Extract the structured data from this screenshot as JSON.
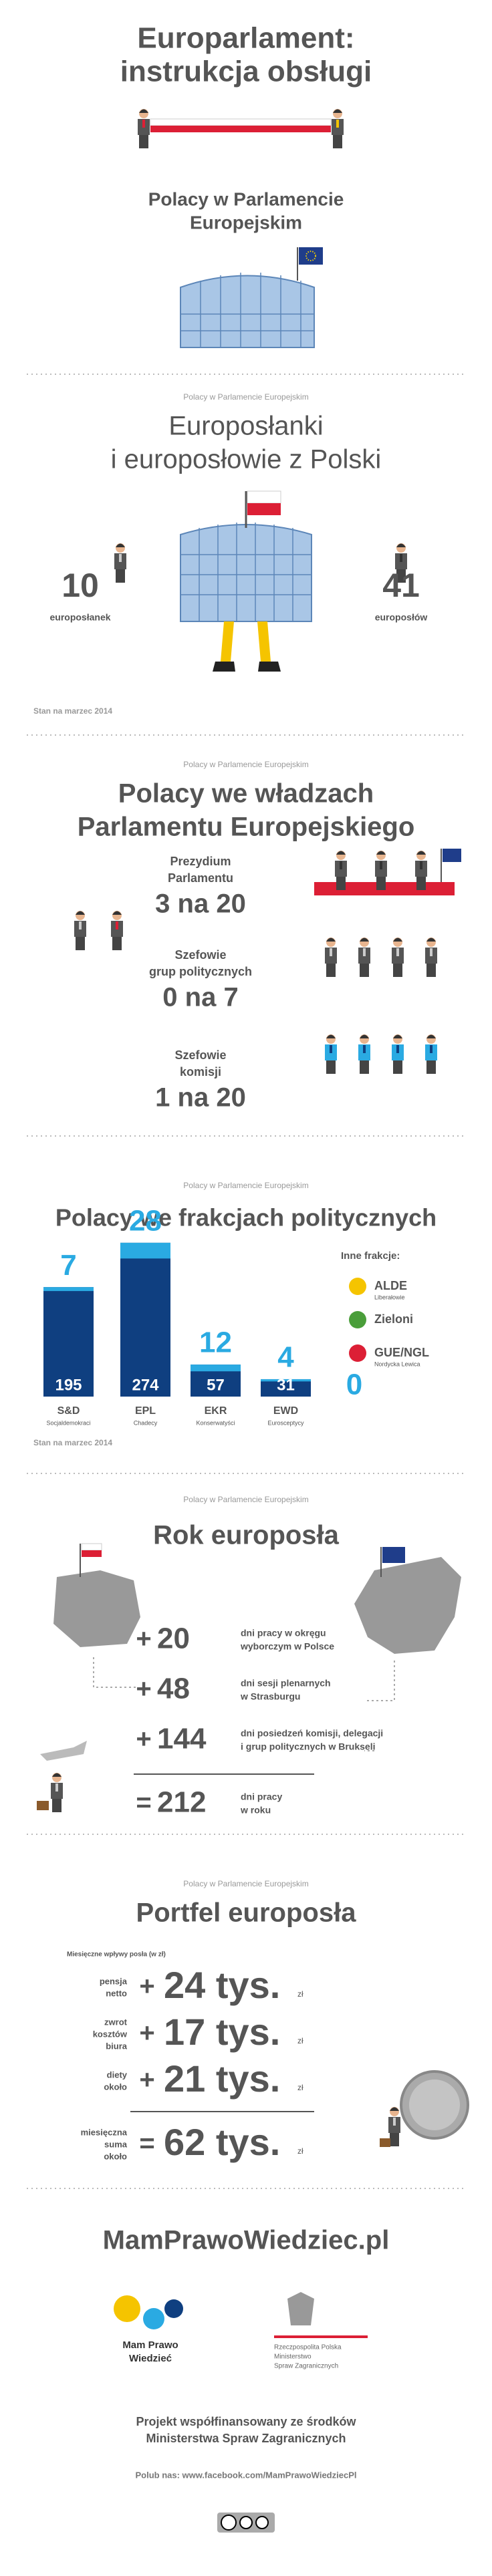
{
  "header": {
    "title_lines": [
      "Europarlament:",
      "instrukcja obsługi"
    ]
  },
  "intro": {
    "title_lines": [
      "Polacy w Parlamencie",
      "Europejskim"
    ]
  },
  "meps": {
    "kicker": "Polacy w Parlamencie Europejskim",
    "title_lines": [
      "Europosłanki",
      "i europosłowie z Polski"
    ],
    "women": {
      "count": 10,
      "label": "europosłanek"
    },
    "men": {
      "count": 41,
      "label": "europosłów"
    },
    "note": "Stan na marzec 2014"
  },
  "authorities": {
    "kicker": "Polacy w Parlamencie Europejskim",
    "title_lines": [
      "Polacy we władzach",
      "Parlamentu Europejskiego"
    ],
    "rows": [
      {
        "label_lines": [
          "Prezydium",
          "Parlamentu"
        ],
        "value": "3 na 20"
      },
      {
        "label_lines": [
          "Szefowie",
          "grup politycznych"
        ],
        "value": "0 na 7"
      },
      {
        "label_lines": [
          "Szefowie",
          "komisji"
        ],
        "value": "1 na 20"
      }
    ]
  },
  "chart_data": {
    "type": "bar",
    "kicker": "Polacy w Parlamencie Europejskim",
    "title": "Polacy we frakcjach politycznych",
    "categories": [
      "S&D",
      "EPL",
      "EKR",
      "EWD"
    ],
    "subcategories": [
      "Socjaldemokraci",
      "Chadecy",
      "Konserwatyści",
      "Eurosceptycy"
    ],
    "series": [
      {
        "color": "#0f3f80",
        "values": [
          195,
          274,
          57,
          31
        ]
      },
      {
        "color": "#2aaae2",
        "values": [
          7,
          28,
          12,
          4
        ]
      }
    ],
    "other": {
      "title": "Inne frakcje:",
      "groups": [
        {
          "name": "ALDE",
          "desc": "Liberałowie"
        },
        {
          "name": "Zieloni"
        },
        {
          "name": "GUE/NGL",
          "desc": "Nordycka Lewica"
        }
      ],
      "count": 0
    },
    "note": "Stan na marzec 2014"
  },
  "year": {
    "kicker": "Polacy w Parlamencie Europejskim",
    "title": "Rok europosła",
    "items": [
      {
        "sign": "+",
        "value": 20,
        "desc_lines": [
          "dni pracy w okręgu",
          "wyborczym w Polsce"
        ]
      },
      {
        "sign": "+",
        "value": 48,
        "desc_lines": [
          "dni sesji plenarnych",
          "w Strasburgu"
        ]
      },
      {
        "sign": "+",
        "value": 144,
        "desc_lines": [
          "dni posiedzeń komisji, delegacji",
          "i grup politycznych w Brukseli"
        ]
      }
    ],
    "total": {
      "sign": "=",
      "value": 212,
      "desc_lines": [
        "dni pracy",
        "w roku"
      ]
    }
  },
  "wallet": {
    "kicker": "Polacy w Parlamencie Europejskim",
    "title": "Portfel europosła",
    "caption": "Miesięczne wpływy posła (w zł)",
    "items": [
      {
        "label_lines": [
          "pensja",
          "netto"
        ],
        "sign": "+",
        "value": "24 tys.",
        "unit": "zł"
      },
      {
        "label_lines": [
          "zwrot",
          "kosztów",
          "biura"
        ],
        "sign": "+",
        "value": "17 tys.",
        "unit": "zł"
      },
      {
        "label_lines": [
          "diety",
          "około"
        ],
        "sign": "+",
        "value": "21 tys.",
        "unit": "zł"
      }
    ],
    "total": {
      "label_lines": [
        "miesięczna",
        "suma",
        "około"
      ],
      "sign": "=",
      "value": "62 tys.",
      "unit": "zł"
    }
  },
  "footer": {
    "site": "MamPrawoWiedziec.pl",
    "logo1_lines": [
      "Mam Prawo",
      "Wiedzieć"
    ],
    "logo2_lines": [
      "Rzeczpospolita Polska",
      "Ministerstwo",
      "Spraw Zagranicznych"
    ],
    "funding_lines": [
      "Projekt współfinansowany ze środków",
      "Ministerstwa Spraw Zagranicznych"
    ],
    "like": "Polub nas: www.facebook.com/MamPrawoWiedziecPl"
  }
}
